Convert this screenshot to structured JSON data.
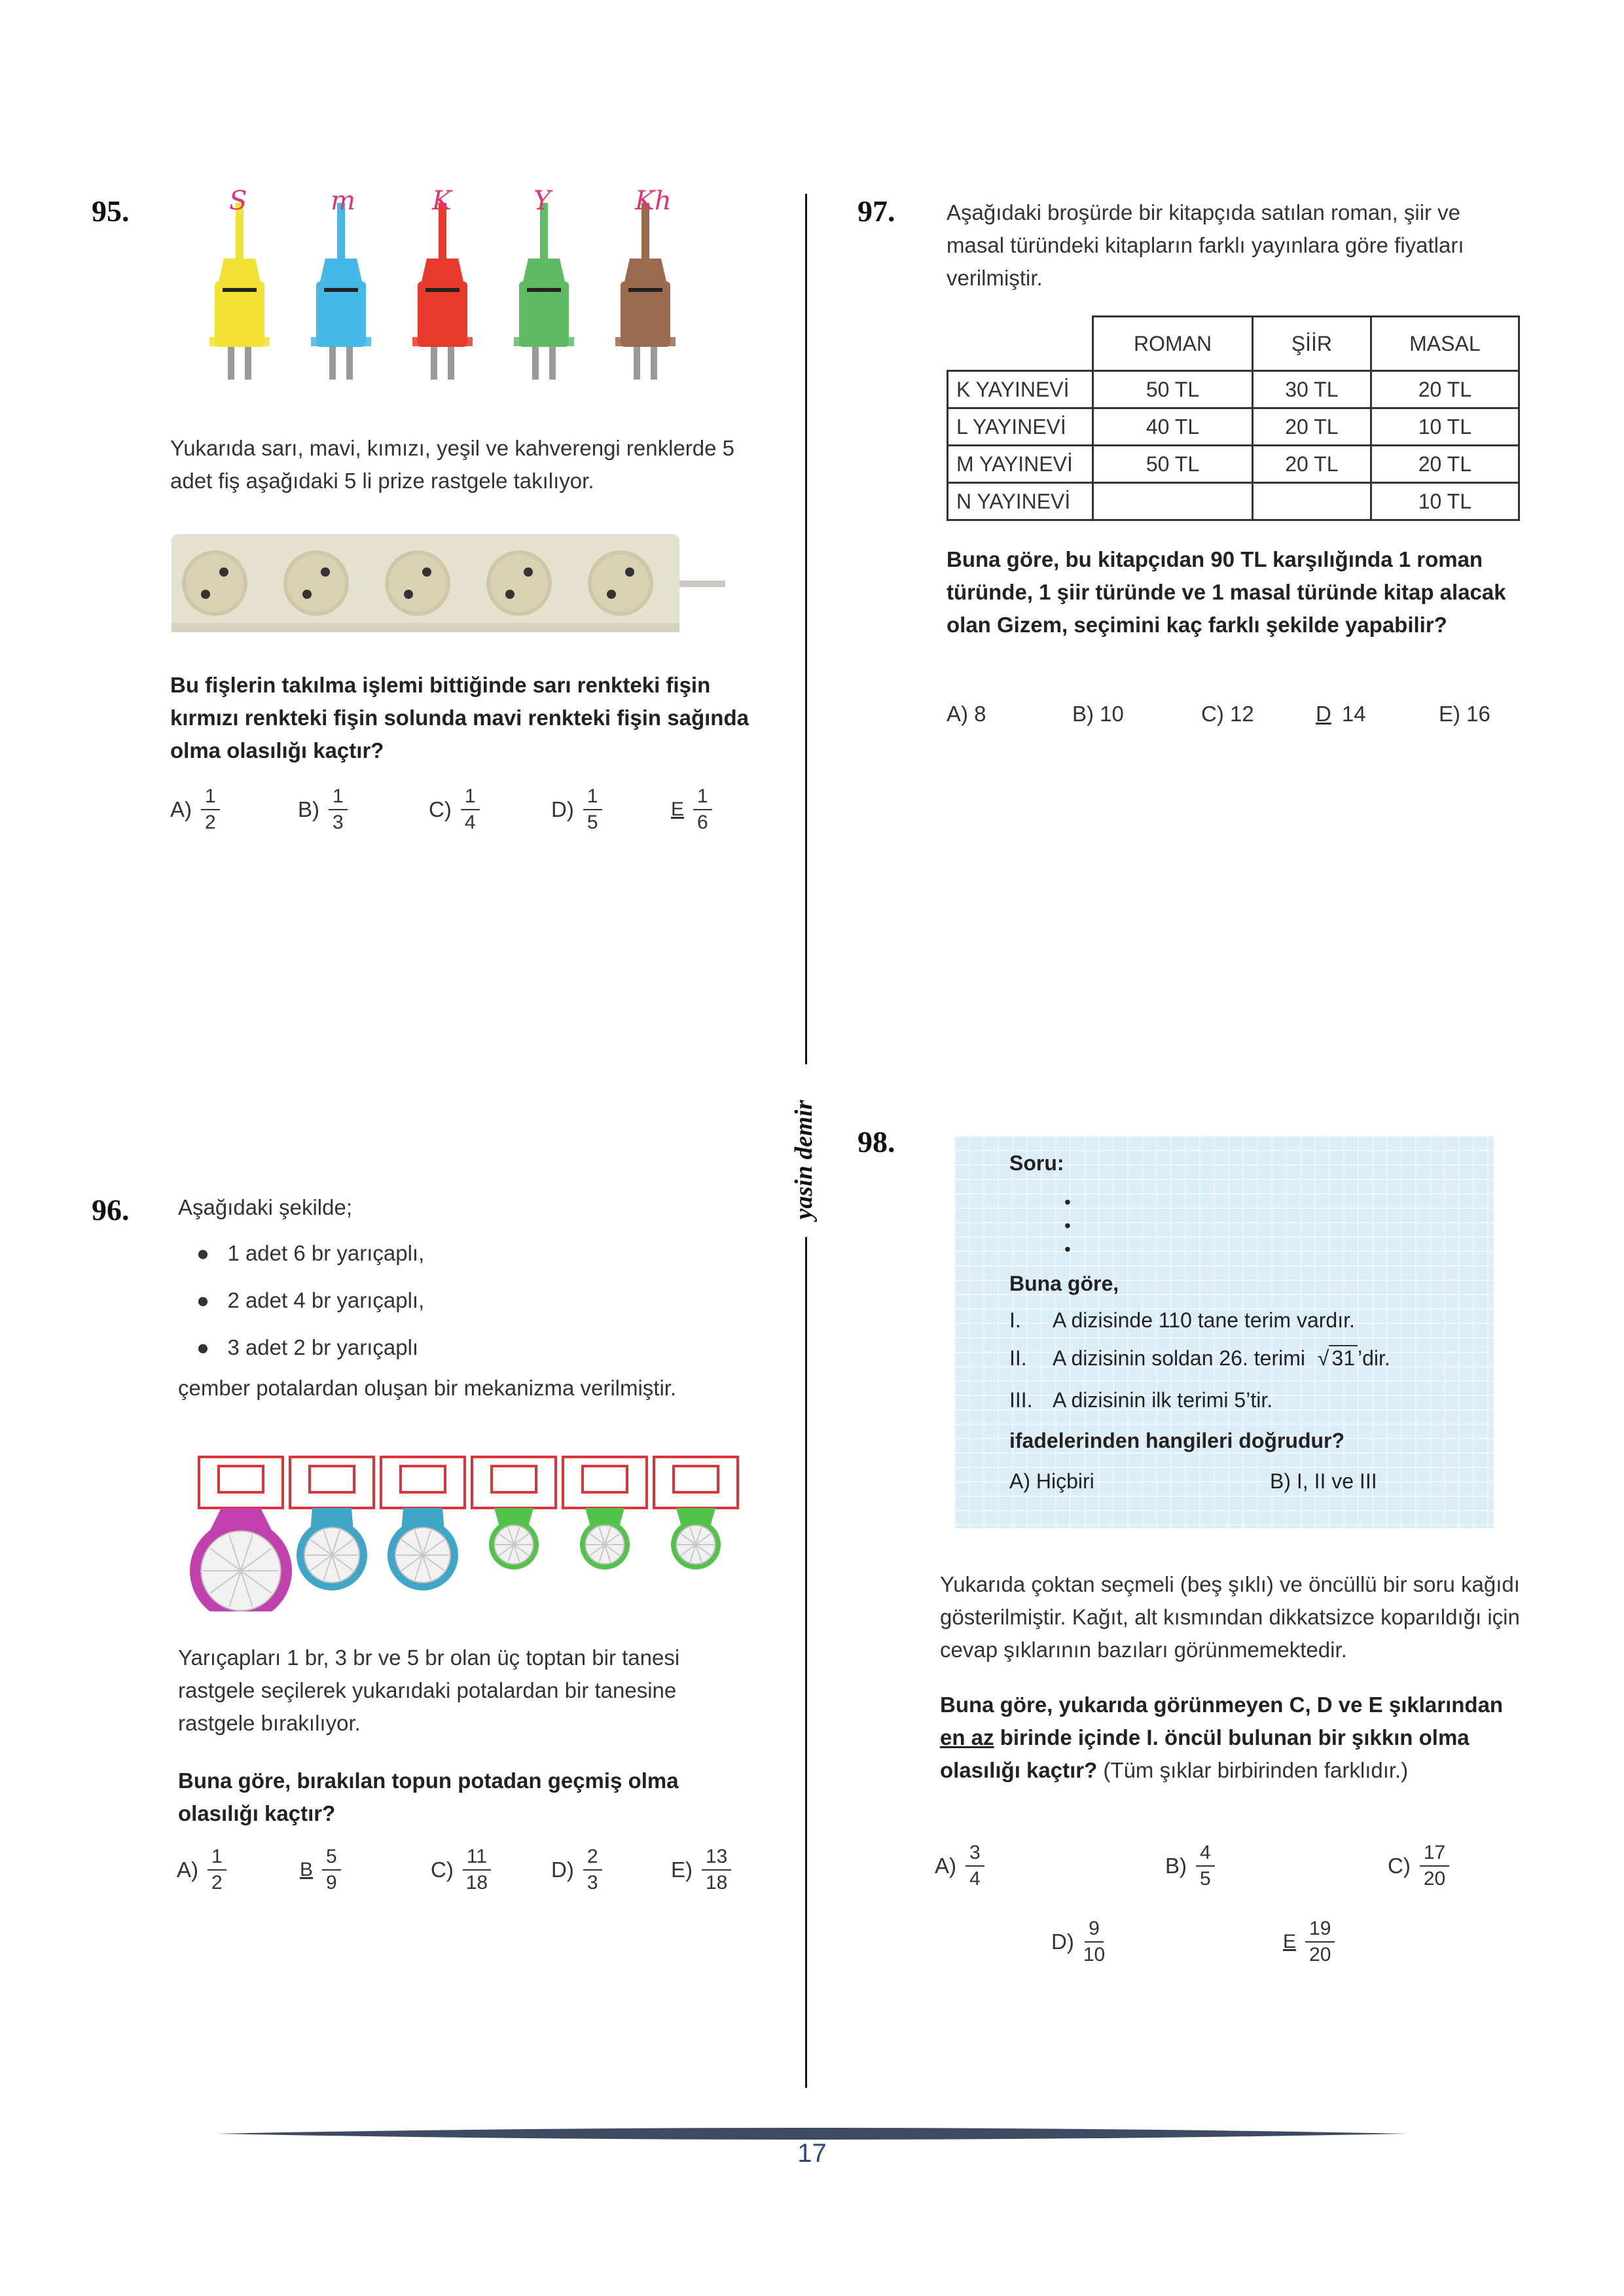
{
  "q95": {
    "number": "95.",
    "handwritten_marks": [
      "S",
      "m",
      "K",
      "Y",
      "Kh"
    ],
    "text": "Yukarıda sarı, mavi, kımızı, yeşil ve kahverengi renklerde 5 adet fiş aşağıdaki 5 li prize rastgele takılıyor.",
    "question": "Bu fişlerin takılma işlemi bittiğinde sarı renkteki fişin kırmızı renkteki fişin solunda mavi renkteki fişin sağında olma olasılığı kaçtır?",
    "plug_colors": [
      "#f2e234",
      "#45b8e8",
      "#e83a2c",
      "#5dbb63",
      "#9b6b4e"
    ],
    "options": [
      {
        "label": "A)",
        "num": "1",
        "den": "2"
      },
      {
        "label": "B)",
        "num": "1",
        "den": "3"
      },
      {
        "label": "C)",
        "num": "1",
        "den": "4"
      },
      {
        "label": "D)",
        "num": "1",
        "den": "5"
      },
      {
        "label": "E",
        "num": "1",
        "den": "6",
        "marked": true
      }
    ]
  },
  "q96": {
    "number": "96.",
    "intro": "Aşağıdaki şekilde;",
    "bullets": [
      "1 adet 6 br yarıçaplı,",
      "2 adet 4 br yarıçaplı,",
      "3 adet 2 br yarıçaplı"
    ],
    "after": "çember potalardan oluşan bir mekanizma verilmiştir.",
    "text": "Yarıçapları 1 br, 3 br ve 5 br olan üç toptan bir tanesi rastgele seçilerek yukarıdaki potalardan bir tanesine rastgele bırakılıyor.",
    "question": "Buna göre, bırakılan topun potadan geçmiş olma olasılığı kaçtır?",
    "hoop_colors": [
      "#c23fae",
      "#3fa6c8",
      "#3fa6c8",
      "#52c24a",
      "#52c24a",
      "#52c24a"
    ],
    "options": [
      {
        "label": "A)",
        "num": "1",
        "den": "2"
      },
      {
        "label": "B",
        "num": "5",
        "den": "9",
        "marked": true
      },
      {
        "label": "C)",
        "num": "11",
        "den": "18"
      },
      {
        "label": "D)",
        "num": "2",
        "den": "3"
      },
      {
        "label": "E)",
        "num": "13",
        "den": "18"
      }
    ]
  },
  "q97": {
    "number": "97.",
    "text": "Aşağıdaki broşürde bir kitapçıda satılan roman, şiir ve masal türündeki kitapların farklı yayınlara göre fiyatları verilmiştir.",
    "table": {
      "headers": [
        "ROMAN",
        "ŞİİR",
        "MASAL"
      ],
      "rows": [
        [
          "K YAYINEVİ",
          "50 TL",
          "30 TL",
          "20 TL"
        ],
        [
          "L YAYINEVİ",
          "40 TL",
          "20 TL",
          "10 TL"
        ],
        [
          "M YAYINEVİ",
          "50 TL",
          "20 TL",
          "20 TL"
        ],
        [
          "N YAYINEVİ",
          "",
          "",
          "10 TL"
        ]
      ]
    },
    "question": "Buna göre, bu kitapçıdan 90 TL karşılığında 1 roman türünde, 1 şiir türünde ve 1 masal türünde kitap alacak olan Gizem, seçimini kaç farklı şekilde yapabilir?",
    "options": [
      {
        "label": "A) 8"
      },
      {
        "label": "B) 10"
      },
      {
        "label": "C) 12"
      },
      {
        "label": "D",
        "value": "14",
        "marked": true
      },
      {
        "label": "E) 16"
      }
    ]
  },
  "q98": {
    "number": "98.",
    "sheet": {
      "title": "Soru:",
      "prompt": "Buna göre,",
      "items": [
        {
          "roman": "I.",
          "text": "A dizisinde 110 tane terim vardır."
        },
        {
          "roman": "II.",
          "text": "A dizisinin soldan 26. terimi",
          "radical": "31",
          "suffix": "’dir."
        },
        {
          "roman": "III.",
          "text": "A dizisinin ilk terimi 5’tir."
        }
      ],
      "ask": "ifadelerinden hangileri doğrudur?",
      "optA": "A) Hiçbiri",
      "optB": "B) I, II ve III"
    },
    "text": "Yukarıda çoktan seçmeli (beş şıklı) ve öncüllü bir soru kağıdı gösterilmiştir. Kağıt, alt kısmından dikkatsizce koparıldığı için cevap şıklarının bazıları görünmemektedir.",
    "question_a": "Buna göre, yukarıda görünmeyen C, D ve E şıklarından",
    "question_u": "en az",
    "question_b": "birinde içinde I. öncül bulunan bir şıkkın olma olasılığı kaçtır?",
    "question_note": "(Tüm şıklar birbirinden farklıdır.)",
    "options": [
      {
        "label": "A)",
        "num": "3",
        "den": "4"
      },
      {
        "label": "B)",
        "num": "4",
        "den": "5"
      },
      {
        "label": "C)",
        "num": "17",
        "den": "20"
      },
      {
        "label": "D)",
        "num": "9",
        "den": "10"
      },
      {
        "label": "E",
        "num": "19",
        "den": "20",
        "marked": true
      }
    ]
  },
  "side_author": "yasin demir",
  "page_number": "17"
}
